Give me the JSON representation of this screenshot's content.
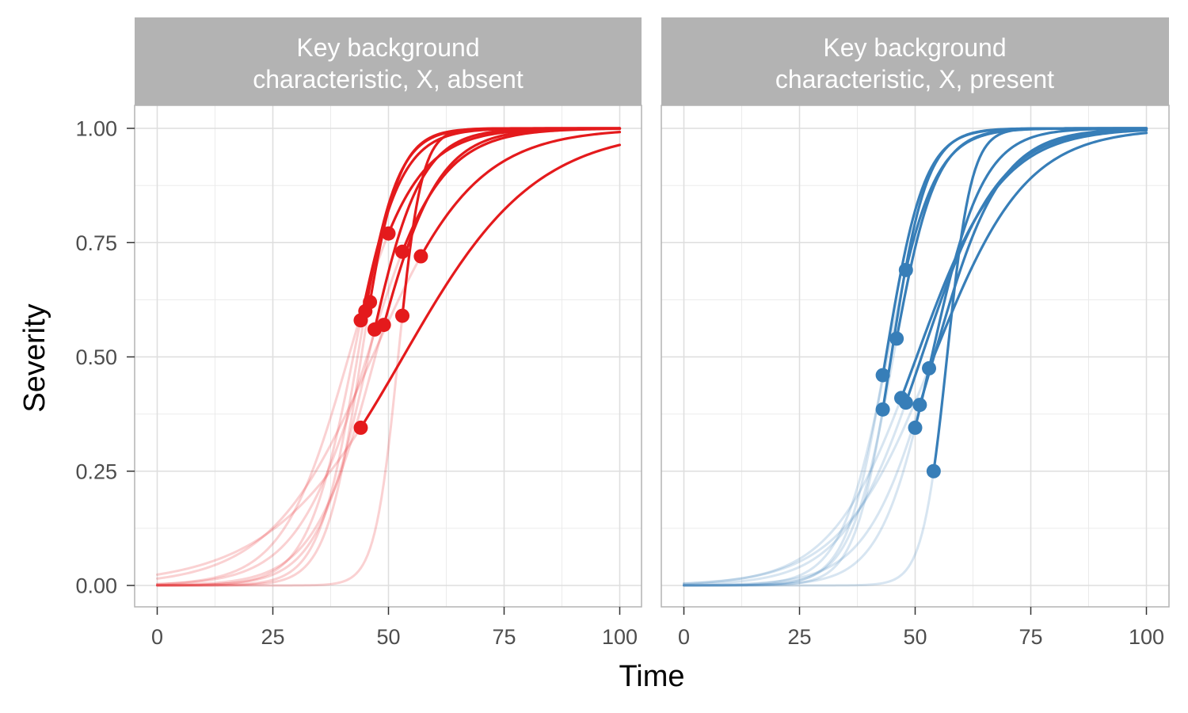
{
  "chart_data": {
    "type": "line",
    "xlabel": "Time",
    "ylabel": "Severity",
    "xlim": [
      0,
      100
    ],
    "ylim": [
      0,
      1
    ],
    "x_ticks": [
      0,
      25,
      50,
      75,
      100
    ],
    "y_ticks": [
      0,
      0.25,
      0.5,
      0.75,
      1
    ],
    "y_tick_labels": [
      "0.00",
      "0.25",
      "0.50",
      "0.75",
      "1.00"
    ],
    "x_tick_labels": [
      "0",
      "25",
      "50",
      "75",
      "100"
    ],
    "grid": true,
    "facets": [
      {
        "title_lines": [
          "Key background",
          "characteristic, X, absent"
        ],
        "color": "#E41A1C",
        "series": [
          {
            "t0": 44,
            "y0": 0.58,
            "k": 0.2
          },
          {
            "t0": 45,
            "y0": 0.6,
            "k": 0.24
          },
          {
            "t0": 46,
            "y0": 0.62,
            "k": 0.26
          },
          {
            "t0": 47,
            "y0": 0.56,
            "k": 0.18
          },
          {
            "t0": 49,
            "y0": 0.57,
            "k": 0.15
          },
          {
            "t0": 50,
            "y0": 0.77,
            "k": 0.14
          },
          {
            "t0": 53,
            "y0": 0.73,
            "k": 0.13
          },
          {
            "t0": 53,
            "y0": 0.59,
            "k": 0.4
          },
          {
            "t0": 57,
            "y0": 0.72,
            "k": 0.09
          },
          {
            "t0": 44,
            "y0": 0.345,
            "k": 0.07
          }
        ]
      },
      {
        "title_lines": [
          "Key background",
          "characteristic, X, present"
        ],
        "color": "#377EB8",
        "series": [
          {
            "t0": 43,
            "y0": 0.46,
            "k": 0.24
          },
          {
            "t0": 43,
            "y0": 0.385,
            "k": 0.26
          },
          {
            "t0": 46,
            "y0": 0.54,
            "k": 0.22
          },
          {
            "t0": 48,
            "y0": 0.69,
            "k": 0.2
          },
          {
            "t0": 47,
            "y0": 0.41,
            "k": 0.11
          },
          {
            "t0": 48,
            "y0": 0.4,
            "k": 0.12
          },
          {
            "t0": 50,
            "y0": 0.345,
            "k": 0.18
          },
          {
            "t0": 51,
            "y0": 0.395,
            "k": 0.14
          },
          {
            "t0": 53,
            "y0": 0.475,
            "k": 0.1
          },
          {
            "t0": 54,
            "y0": 0.25,
            "k": 0.38
          }
        ]
      }
    ]
  }
}
